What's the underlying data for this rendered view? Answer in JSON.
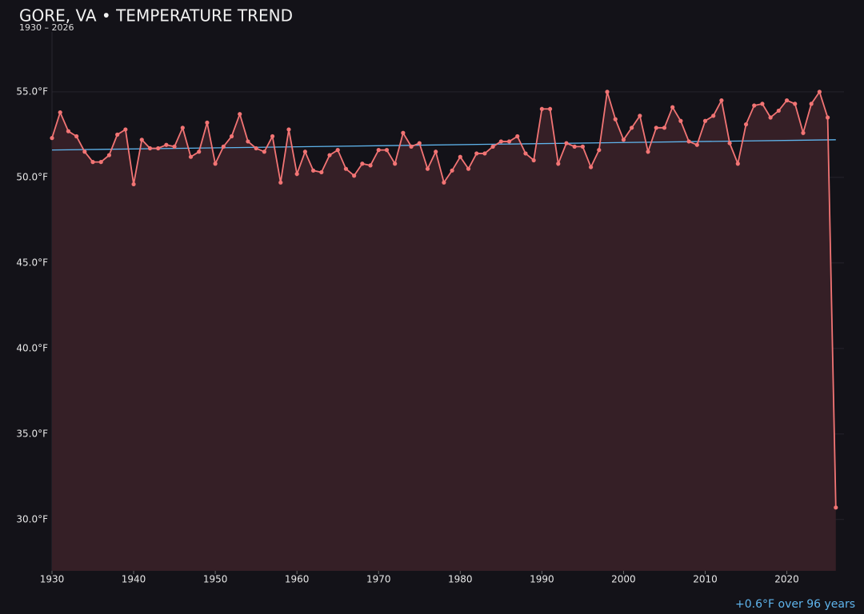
{
  "chart_data": {
    "type": "line",
    "title": "GORE, VA • TEMPERATURE TREND",
    "subtitle": "1930 – 2026",
    "annotation": "+0.6°F over 96 years",
    "x": [
      1930,
      1931,
      1932,
      1933,
      1934,
      1935,
      1936,
      1937,
      1938,
      1939,
      1940,
      1941,
      1942,
      1943,
      1944,
      1945,
      1946,
      1947,
      1948,
      1949,
      1950,
      1951,
      1952,
      1953,
      1954,
      1955,
      1956,
      1957,
      1958,
      1959,
      1960,
      1961,
      1962,
      1963,
      1964,
      1965,
      1966,
      1967,
      1968,
      1969,
      1970,
      1971,
      1972,
      1973,
      1974,
      1975,
      1976,
      1977,
      1978,
      1979,
      1980,
      1981,
      1982,
      1983,
      1984,
      1985,
      1986,
      1987,
      1988,
      1989,
      1990,
      1991,
      1992,
      1993,
      1994,
      1995,
      1996,
      1997,
      1998,
      1999,
      2000,
      2001,
      2002,
      2003,
      2004,
      2005,
      2006,
      2007,
      2008,
      2009,
      2010,
      2011,
      2012,
      2013,
      2014,
      2015,
      2016,
      2017,
      2018,
      2019,
      2020,
      2021,
      2022,
      2023,
      2024,
      2025,
      2026
    ],
    "series": [
      {
        "color": "#f27474",
        "fill": "#351f26",
        "values": [
          52.3,
          53.8,
          52.7,
          52.4,
          51.5,
          50.9,
          50.9,
          51.3,
          52.5,
          52.8,
          49.6,
          52.2,
          51.7,
          51.7,
          51.9,
          51.8,
          52.9,
          51.2,
          51.5,
          53.2,
          50.8,
          51.8,
          52.4,
          53.7,
          52.1,
          51.7,
          51.5,
          52.4,
          49.7,
          52.8,
          50.2,
          51.5,
          50.4,
          50.3,
          51.3,
          51.6,
          50.5,
          50.1,
          50.8,
          50.7,
          51.6,
          51.6,
          50.8,
          52.6,
          51.8,
          52.0,
          50.5,
          51.5,
          49.7,
          50.4,
          51.2,
          50.5,
          51.4,
          51.4,
          51.8,
          52.1,
          52.1,
          52.4,
          51.4,
          51.0,
          54.0,
          54.0,
          50.8,
          52.0,
          51.8,
          51.8,
          50.6,
          51.6,
          55.0,
          53.4,
          52.2,
          52.9,
          53.6,
          51.5,
          52.9,
          52.9,
          54.1,
          53.3,
          52.1,
          51.9,
          53.3,
          53.6,
          54.5,
          52.0,
          50.8,
          53.1,
          54.2,
          54.3,
          53.5,
          53.9,
          54.5,
          54.3,
          52.6,
          54.3,
          55.0,
          53.5,
          30.7
        ]
      }
    ],
    "trend": {
      "color": "#5fb4ec",
      "x": [
        1930,
        2026
      ],
      "values": [
        51.6,
        52.2
      ]
    },
    "xlim": [
      1930,
      2027
    ],
    "xticks": [
      1930,
      1940,
      1950,
      1960,
      1970,
      1980,
      1990,
      2000,
      2010,
      2020
    ],
    "ylim": [
      27,
      58.5
    ],
    "yticks": [
      {
        "value": 30,
        "label": "30.0°F"
      },
      {
        "value": 35,
        "label": "35.0°F"
      },
      {
        "value": 40,
        "label": "40.0°F"
      },
      {
        "value": 45,
        "label": "45.0°F"
      },
      {
        "value": 50,
        "label": "50.0°F"
      },
      {
        "value": 55,
        "label": "55.0°F"
      }
    ],
    "grid": true
  }
}
